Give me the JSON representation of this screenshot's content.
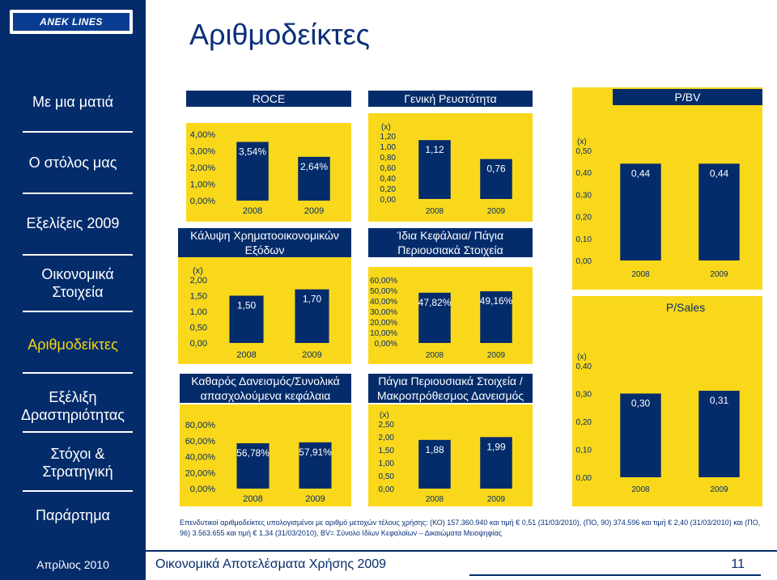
{
  "logo_text": "ANEK LINES",
  "page_title": "Αριθμοδείκτες",
  "nav": [
    {
      "label": "Με μια ματιά"
    },
    {
      "label": "Ο στόλος μας"
    },
    {
      "label": "Εξελίξεις 2009"
    },
    {
      "label": "Οικονομικά Στοιχεία"
    },
    {
      "label": "Αριθμοδείκτες"
    },
    {
      "label": "Εξέλιξη Δραστηριότητας"
    },
    {
      "label": "Στόχοι & Στρατηγική"
    },
    {
      "label": "Παράρτημα"
    }
  ],
  "footnote": "Επενδυτικοί αριθμοδείκτες υπολογισμένοι με αριθμό μετοχών τέλους χρήσης: (ΚΟ) 157.360.940 και τιμή € 0,51 (31/03/2010), (ΠΟ, 90) 374.596 και τιμή € 2,40 (31/03/2010) και (ΠΟ, 96) 3.563.655 και τιμή € 1,34 (31/03/2010), BV= Σύνολο Ιδίων Κεφαλαίων – Δικαιώματα Μειοψηφίας",
  "footer": {
    "date": "Απρίλιος 2010",
    "title": "Οικονομικά Αποτελέσματα Χρήσης 2009",
    "page": "11"
  },
  "colors": {
    "navy": "#042c6b",
    "yellow": "#f9d81b",
    "active": "#f2d40f"
  },
  "chart_data": [
    {
      "type": "bar",
      "title": "ROCE",
      "unit_label": "",
      "categories": [
        "2008",
        "2009"
      ],
      "values": [
        3.54,
        2.64
      ],
      "labels": [
        "3,54%",
        "2,64%"
      ],
      "ylim": [
        0,
        4
      ],
      "ticks": [
        "0,00%",
        "1,00%",
        "2,00%",
        "3,00%",
        "4,00%"
      ]
    },
    {
      "type": "bar",
      "title": "Κάλυψη Χρηματοοικονομικών Εξόδων",
      "unit_label": "(x)",
      "categories": [
        "2008",
        "2009"
      ],
      "values": [
        1.5,
        1.7
      ],
      "labels": [
        "1,50",
        "1,70"
      ],
      "ylim": [
        0,
        2
      ],
      "ticks": [
        "0,00",
        "0,50",
        "1,00",
        "1,50",
        "2,00"
      ]
    },
    {
      "type": "bar",
      "title": "Καθαρός Δανεισμός/Συνολικά απασχολούμενα κεφάλαια",
      "unit_label": "",
      "categories": [
        "2008",
        "2009"
      ],
      "values": [
        56.78,
        57.91
      ],
      "labels": [
        "56,78%",
        "57,91%"
      ],
      "ylim": [
        0,
        80
      ],
      "ticks": [
        "0,00%",
        "20,00%",
        "40,00%",
        "60,00%",
        "80,00%"
      ]
    },
    {
      "type": "bar",
      "title": "Γενική Ρευστότητα",
      "unit_label": "(x)",
      "categories": [
        "2008",
        "2009"
      ],
      "values": [
        1.12,
        0.76
      ],
      "labels": [
        "1,12",
        "0,76"
      ],
      "ylim": [
        0,
        1.2
      ],
      "ticks": [
        "0,00",
        "0,20",
        "0,40",
        "0,60",
        "0,80",
        "1,00",
        "1,20"
      ]
    },
    {
      "type": "bar",
      "title": "Ίδια Κεφάλαια/ Πάγια Περιουσιακά Στοιχεία",
      "unit_label": "",
      "categories": [
        "2008",
        "2009"
      ],
      "values": [
        47.82,
        49.16
      ],
      "labels": [
        "47,82%",
        "49,16%"
      ],
      "ylim": [
        0,
        60
      ],
      "ticks": [
        "0,00%",
        "10,00%",
        "20,00%",
        "30,00%",
        "40,00%",
        "50,00%",
        "60,00%"
      ]
    },
    {
      "type": "bar",
      "title": "Πάγια Περιουσιακά Στοιχεία / Μακροπρόθεσμος Δανεισμός",
      "unit_label": "(x)",
      "categories": [
        "2008",
        "2009"
      ],
      "values": [
        1.88,
        1.99
      ],
      "labels": [
        "1,88",
        "1,99"
      ],
      "ylim": [
        0,
        2.5
      ],
      "ticks": [
        "0,00",
        "0,50",
        "1,00",
        "1,50",
        "2,00",
        "2,50"
      ]
    },
    {
      "type": "bar",
      "title": "P/BV",
      "unit_label": "(x)",
      "categories": [
        "2008",
        "2009"
      ],
      "values": [
        0.44,
        0.44
      ],
      "labels": [
        "0,44",
        "0,44"
      ],
      "ylim": [
        0,
        0.5
      ],
      "ticks": [
        "0,00",
        "0,10",
        "0,20",
        "0,30",
        "0,40",
        "0,50"
      ]
    },
    {
      "type": "bar",
      "title": "P/Sales",
      "unit_label": "(x)",
      "categories": [
        "2008",
        "2009"
      ],
      "values": [
        0.3,
        0.31
      ],
      "labels": [
        "0,30",
        "0,31"
      ],
      "ylim": [
        0,
        0.4
      ],
      "ticks": [
        "0,00",
        "0,10",
        "0,20",
        "0,30",
        "0,40"
      ]
    }
  ]
}
